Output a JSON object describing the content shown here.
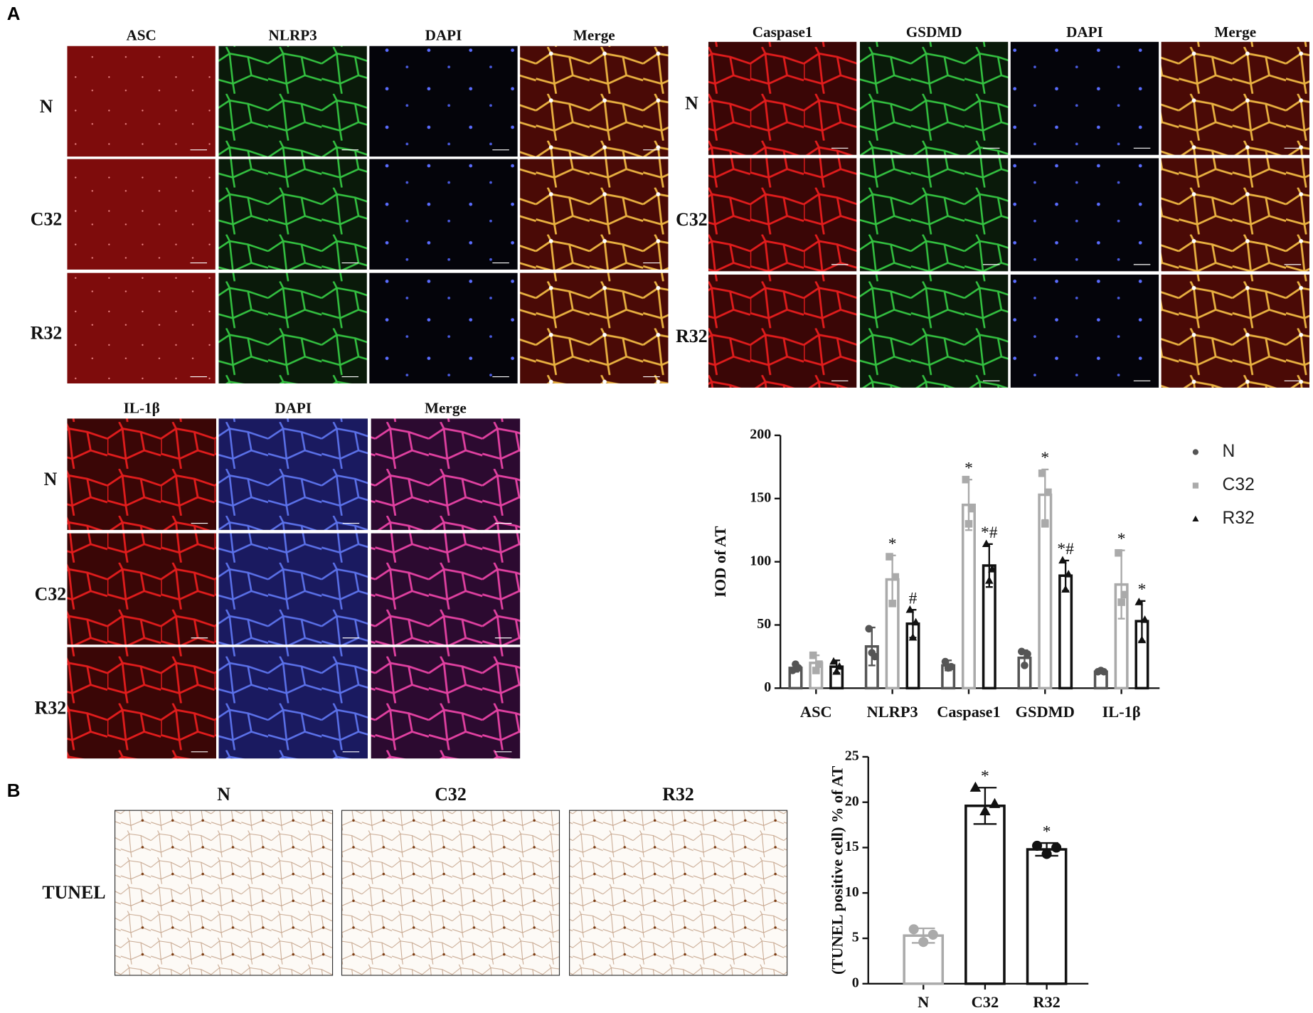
{
  "panel_labels": [
    "A",
    "B"
  ],
  "figure_a": {
    "groups": [
      {
        "columns": [
          "ASC",
          "NLRP3",
          "DAPI",
          "Merge"
        ],
        "rows": [
          "N",
          "C32",
          "R32"
        ]
      },
      {
        "columns": [
          "Caspase1",
          "GSDMD",
          "DAPI",
          "Merge"
        ],
        "rows": [
          "N",
          "C32",
          "R32"
        ]
      },
      {
        "columns": [
          "IL-1β",
          "DAPI",
          "Merge"
        ],
        "rows": [
          "N",
          "C32",
          "R32"
        ]
      }
    ]
  },
  "figure_b": {
    "columns": [
      "N",
      "C32",
      "R32"
    ],
    "row": "TUNEL"
  },
  "chart_data": [
    {
      "type": "bar",
      "ylabel": "IOD of AT",
      "categories": [
        "ASC",
        "NLRP3",
        "Caspase1",
        "GSDMD",
        "IL-1β"
      ],
      "series": [
        {
          "name": "N",
          "color": "#555555",
          "marker": "circle",
          "values": [
            16,
            33,
            18,
            24,
            13
          ],
          "errors": [
            3,
            15,
            4,
            6,
            1
          ],
          "points": [
            [
              14,
              19,
              16
            ],
            [
              47,
              28,
              25
            ],
            [
              21,
              16,
              17
            ],
            [
              29,
              18,
              27
            ],
            [
              13,
              14,
              13
            ]
          ],
          "annotations": [
            null,
            null,
            null,
            null,
            null
          ]
        },
        {
          "name": "C32",
          "color": "#aaaaaa",
          "marker": "square",
          "values": [
            20,
            86,
            145,
            153,
            82
          ],
          "errors": [
            6,
            19,
            20,
            20,
            27
          ],
          "points": [
            [
              26,
              14,
              19
            ],
            [
              104,
              67,
              88
            ],
            [
              165,
              130,
              142
            ],
            [
              170,
              130,
              155
            ],
            [
              107,
              68,
              74
            ]
          ],
          "annotations": [
            null,
            "*",
            "*",
            "*",
            "*"
          ]
        },
        {
          "name": "R32",
          "color": "#111111",
          "marker": "triangle",
          "values": [
            17,
            51,
            97,
            89,
            53
          ],
          "errors": [
            5,
            11,
            17,
            12,
            16
          ],
          "points": [
            [
              21,
              13,
              17
            ],
            [
              62,
              40,
              52
            ],
            [
              114,
              85,
              94
            ],
            [
              101,
              78,
              90
            ],
            [
              68,
              38,
              54
            ]
          ],
          "annotations": [
            null,
            "#",
            "*#",
            "*#",
            "*"
          ]
        }
      ],
      "ylim": [
        0,
        200
      ],
      "yticks": [
        0,
        50,
        100,
        150,
        200
      ],
      "legend": "right"
    },
    {
      "type": "bar",
      "ylabel": "(TUNEL positive cell) % of AT",
      "categories": [
        "N",
        "C32",
        "R32"
      ],
      "values": [
        5.3,
        19.6,
        14.8
      ],
      "errors": [
        0.8,
        2,
        0.7
      ],
      "colors": [
        "#aaaaaa",
        "#111111",
        "#111111"
      ],
      "markers": [
        "circle",
        "triangle",
        "circle"
      ],
      "points": [
        [
          6,
          4.6,
          5.4
        ],
        [
          21.6,
          19,
          19.8
        ],
        [
          15.2,
          14.3,
          15
        ]
      ],
      "annotations": [
        null,
        "*",
        "*"
      ],
      "ylim": [
        0,
        25
      ],
      "yticks": [
        0,
        5,
        10,
        15,
        20,
        25
      ]
    }
  ]
}
